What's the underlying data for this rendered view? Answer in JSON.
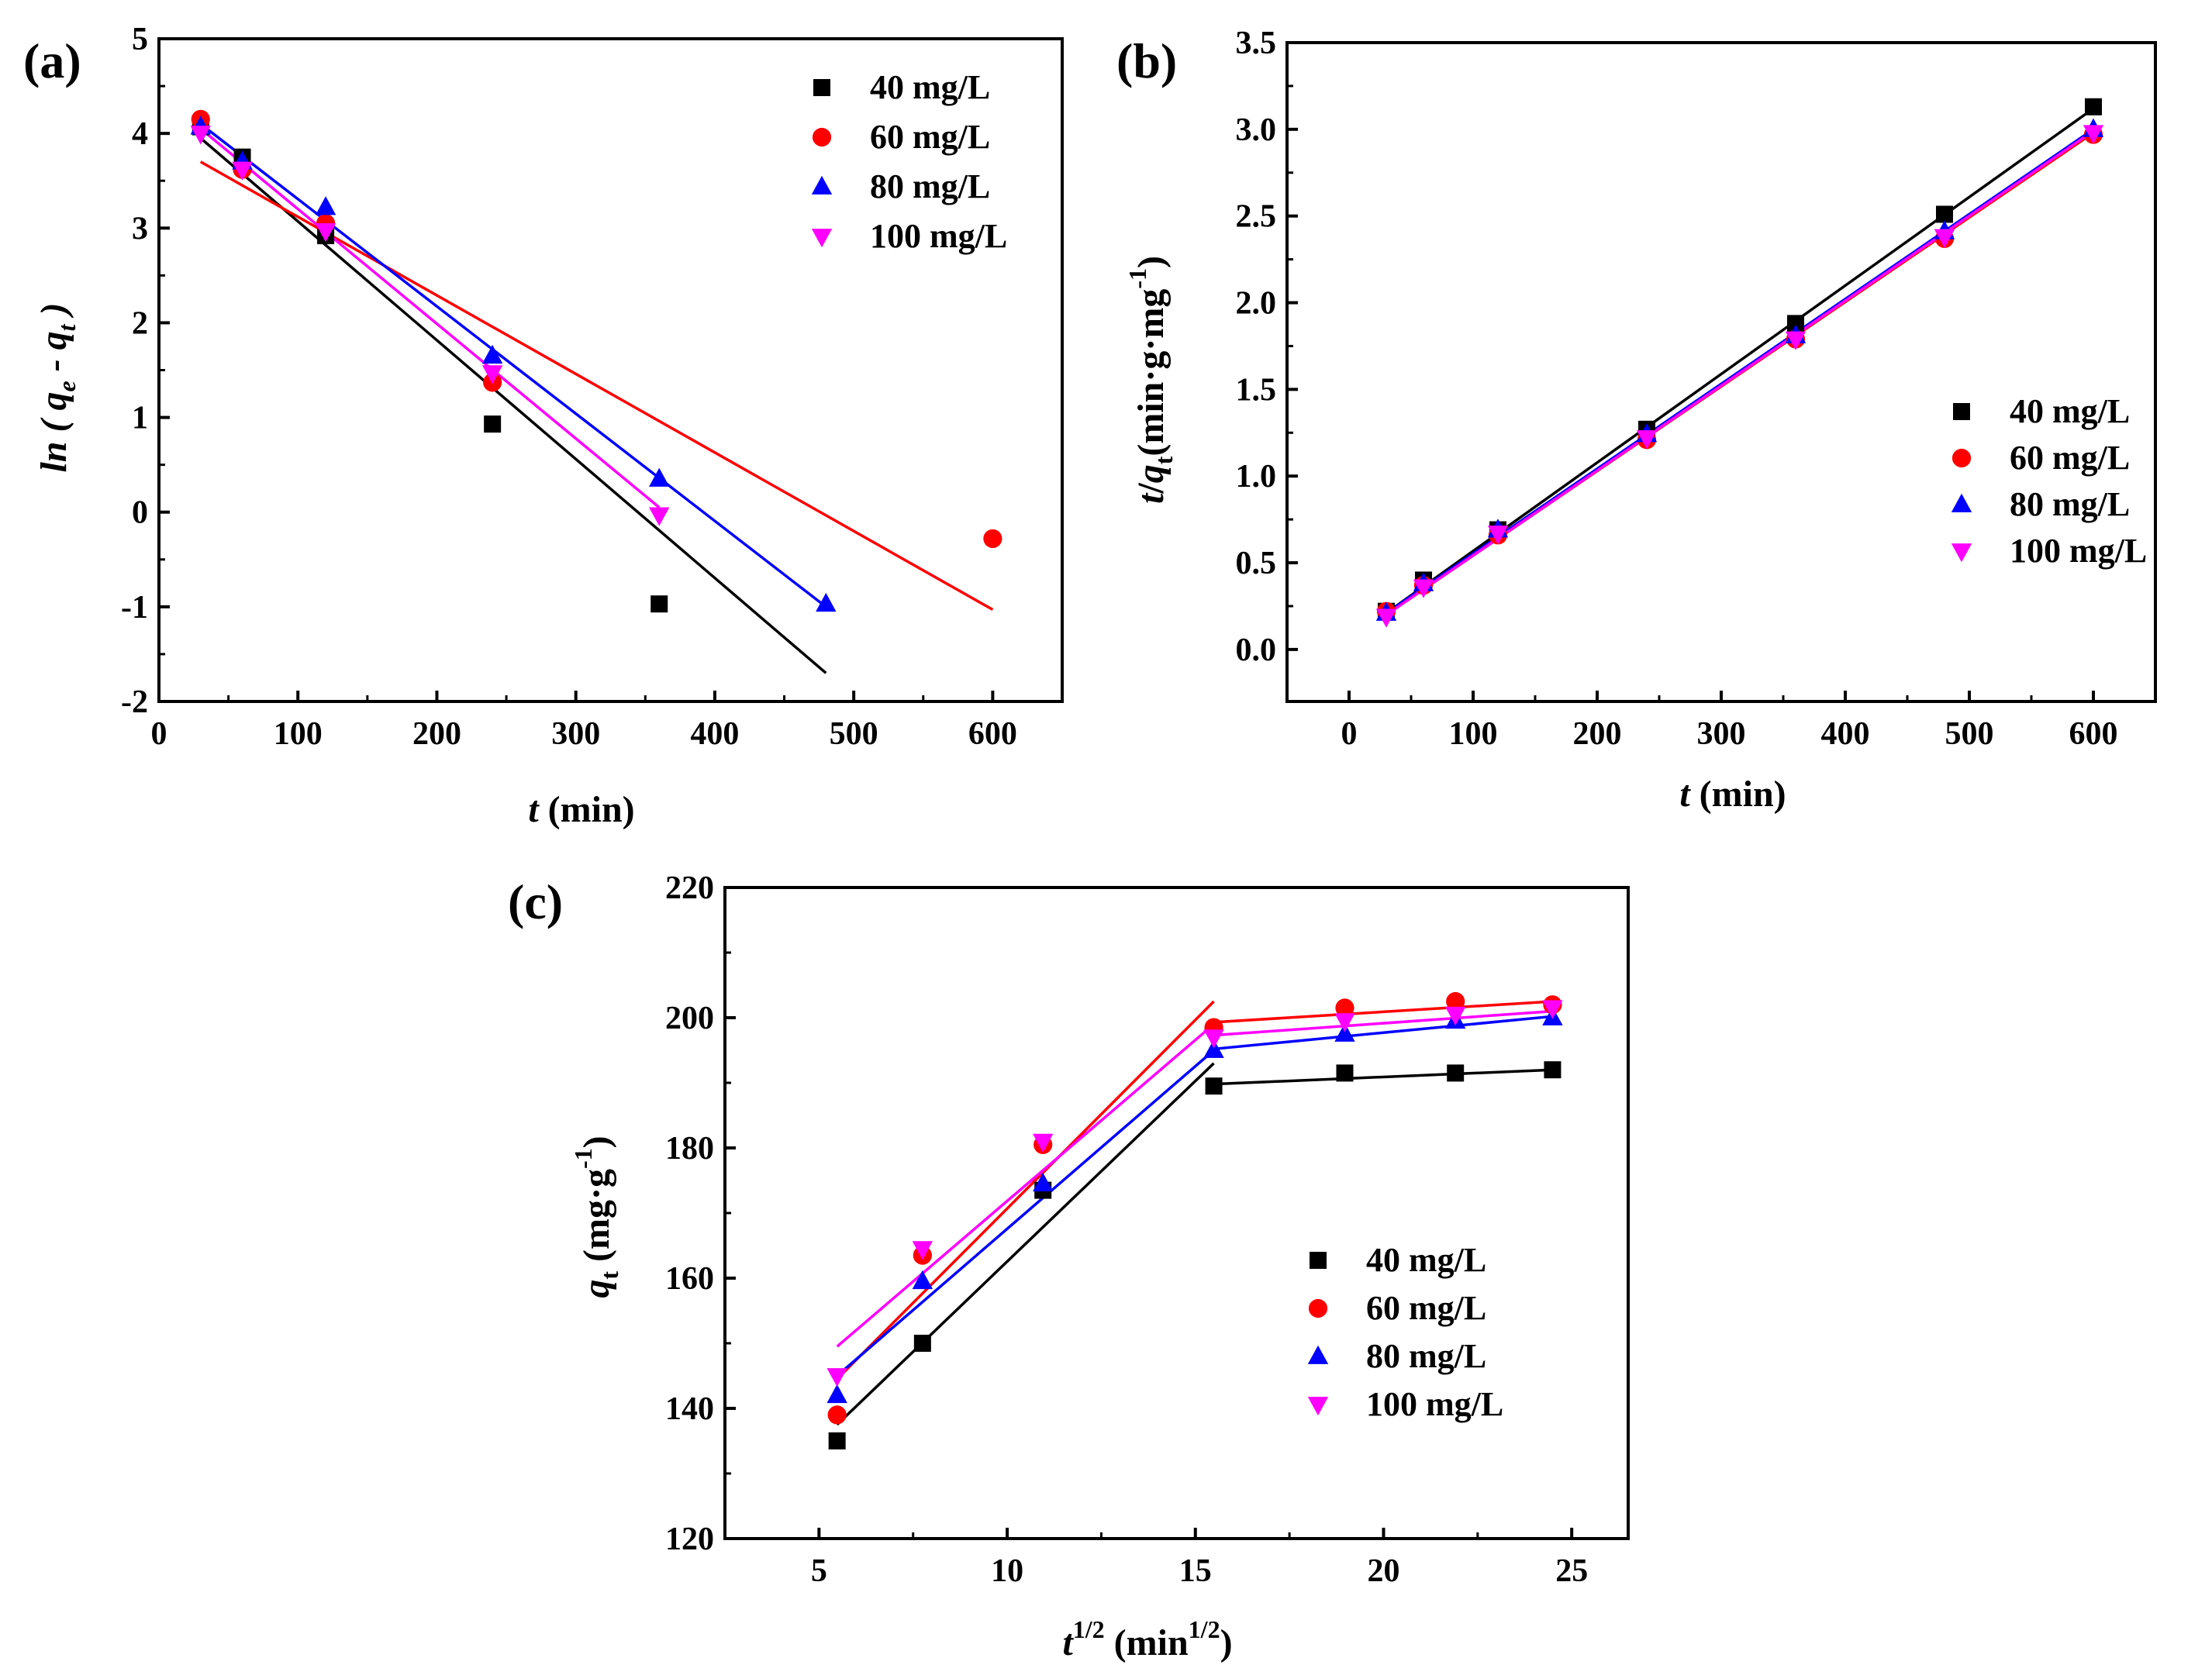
{
  "colors": {
    "40 mg/L": "#000000",
    "60 mg/L": "#ff0000",
    "80 mg/L": "#0000ff",
    "100 mg/L": "#ff00ff"
  },
  "chart_data": [
    {
      "panel": "(a)",
      "type": "scatter",
      "title": "",
      "xlabel": "t (min)",
      "ylabel": "ln ( qe - qt )",
      "xlim": [
        0,
        650
      ],
      "ylim": [
        -2,
        5
      ],
      "xticks": [
        0,
        100,
        200,
        300,
        400,
        500,
        600
      ],
      "yticks": [
        -2,
        -1,
        0,
        1,
        2,
        3,
        4,
        5
      ],
      "legend_position": "top-right",
      "series": [
        {
          "name": "40 mg/L",
          "marker": "square",
          "x": [
            30,
            60,
            120,
            240,
            360
          ],
          "y": [
            4.07,
            3.75,
            2.92,
            0.93,
            -0.97
          ],
          "fit": {
            "x": [
              30,
              480
            ],
            "y": [
              3.95,
              -1.7
            ]
          }
        },
        {
          "name": "60 mg/L",
          "marker": "circle",
          "x": [
            30,
            60,
            120,
            240,
            600
          ],
          "y": [
            4.15,
            3.62,
            3.05,
            1.37,
            -0.28
          ],
          "fit": {
            "x": [
              30,
              600
            ],
            "y": [
              3.7,
              -1.03
            ]
          }
        },
        {
          "name": "80 mg/L",
          "marker": "triangle-up",
          "x": [
            30,
            60,
            120,
            240,
            360,
            480
          ],
          "y": [
            4.07,
            3.7,
            3.22,
            1.65,
            0.35,
            -0.97
          ],
          "fit": {
            "x": [
              30,
              480
            ],
            "y": [
              4.1,
              -1.0
            ]
          }
        },
        {
          "name": "100 mg/L",
          "marker": "triangle-down",
          "x": [
            30,
            60,
            120,
            240,
            360
          ],
          "y": [
            4.0,
            3.62,
            2.97,
            1.47,
            -0.03
          ],
          "fit": {
            "x": [
              30,
              360
            ],
            "y": [
              4.05,
              0.05
            ]
          }
        }
      ]
    },
    {
      "panel": "(b)",
      "type": "scatter",
      "title": "",
      "xlabel": "t (min)",
      "ylabel": "t/qt(min·g·mg-1)",
      "xlim": [
        -50,
        650
      ],
      "ylim": [
        -0.3,
        3.5
      ],
      "xticks": [
        0,
        100,
        200,
        300,
        400,
        500,
        600
      ],
      "yticks": [
        0.0,
        0.5,
        1.0,
        1.5,
        2.0,
        2.5,
        3.0,
        3.5
      ],
      "legend_position": "bottom-right",
      "series": [
        {
          "name": "40 mg/L",
          "marker": "square",
          "x": [
            30,
            60,
            120,
            240,
            360,
            480,
            600
          ],
          "y": [
            0.22,
            0.4,
            0.69,
            1.27,
            1.88,
            2.51,
            3.13
          ],
          "fit": {
            "x": [
              30,
              600
            ],
            "y": [
              0.21,
              3.12
            ]
          }
        },
        {
          "name": "60 mg/L",
          "marker": "circle",
          "x": [
            30,
            60,
            120,
            240,
            360,
            480,
            600
          ],
          "y": [
            0.22,
            0.37,
            0.66,
            1.21,
            1.79,
            2.37,
            2.97
          ],
          "fit": {
            "x": [
              30,
              600
            ],
            "y": [
              0.2,
              2.98
            ]
          }
        },
        {
          "name": "80 mg/L",
          "marker": "triangle-up",
          "x": [
            30,
            60,
            120,
            240,
            360,
            480,
            600
          ],
          "y": [
            0.21,
            0.38,
            0.69,
            1.24,
            1.81,
            2.41,
            3.0
          ],
          "fit": {
            "x": [
              30,
              600
            ],
            "y": [
              0.21,
              3.0
            ]
          }
        },
        {
          "name": "100 mg/L",
          "marker": "triangle-down",
          "x": [
            30,
            60,
            120,
            240,
            360,
            480,
            600
          ],
          "y": [
            0.19,
            0.36,
            0.67,
            1.22,
            1.79,
            2.38,
            2.98
          ],
          "fit": {
            "x": [
              30,
              600
            ],
            "y": [
              0.2,
              2.99
            ]
          }
        }
      ]
    },
    {
      "panel": "(c)",
      "type": "scatter",
      "title": "",
      "xlabel_main": "t",
      "xlabel_sup": "1/2",
      "xlabel_units": "(min",
      "xlabel_units_sup": "1/2",
      "xlabel_units_close": ")",
      "ylabel": "qt (mg·g-1)",
      "xlim": [
        2.5,
        26.5
      ],
      "ylim": [
        120,
        220
      ],
      "xticks": [
        5,
        10,
        15,
        20,
        25
      ],
      "yticks": [
        120,
        140,
        160,
        180,
        200,
        220
      ],
      "legend_position": "bottom-right",
      "series": [
        {
          "name": "40 mg/L",
          "marker": "square",
          "x": [
            5.48,
            7.75,
            10.95,
            15.49,
            18.97,
            21.91,
            24.49
          ],
          "y": [
            135.0,
            150.0,
            173.5,
            189.5,
            191.5,
            191.5,
            192.0
          ],
          "fit1": {
            "x": [
              5.48,
              15.49
            ],
            "y": [
              137.5,
              193.0
            ]
          },
          "fit2": {
            "x": [
              15.49,
              24.49
            ],
            "y": [
              189.8,
              192.0
            ]
          }
        },
        {
          "name": "60 mg/L",
          "marker": "circle",
          "x": [
            5.48,
            7.75,
            10.95,
            15.49,
            18.97,
            21.91,
            24.49
          ],
          "y": [
            139.0,
            163.5,
            180.5,
            198.5,
            201.5,
            202.5,
            202.0
          ],
          "fit1": {
            "x": [
              5.48,
              15.49
            ],
            "y": [
              144.5,
              202.5
            ]
          },
          "fit2": {
            "x": [
              15.49,
              24.49
            ],
            "y": [
              199.3,
              202.5
            ]
          }
        },
        {
          "name": "80 mg/L",
          "marker": "triangle-up",
          "x": [
            5.48,
            7.75,
            10.95,
            15.49,
            18.97,
            21.91,
            24.49
          ],
          "y": [
            142.0,
            159.5,
            174.5,
            195.0,
            197.5,
            199.5,
            200.0
          ],
          "fit1": {
            "x": [
              5.48,
              15.49
            ],
            "y": [
              145.0,
              195.0
            ]
          },
          "fit2": {
            "x": [
              15.49,
              24.49
            ],
            "y": [
              195.2,
              200.2
            ]
          }
        },
        {
          "name": "100 mg/L",
          "marker": "triangle-down",
          "x": [
            5.48,
            7.75,
            10.95,
            15.49,
            18.97,
            21.91,
            24.49
          ],
          "y": [
            145.0,
            164.5,
            181.0,
            197.0,
            199.5,
            200.5,
            201.5
          ],
          "fit1": {
            "x": [
              5.48,
              15.49
            ],
            "y": [
              149.5,
              199.0
            ]
          },
          "fit2": {
            "x": [
              15.49,
              24.49
            ],
            "y": [
              197.3,
              201.0
            ]
          }
        }
      ]
    }
  ]
}
